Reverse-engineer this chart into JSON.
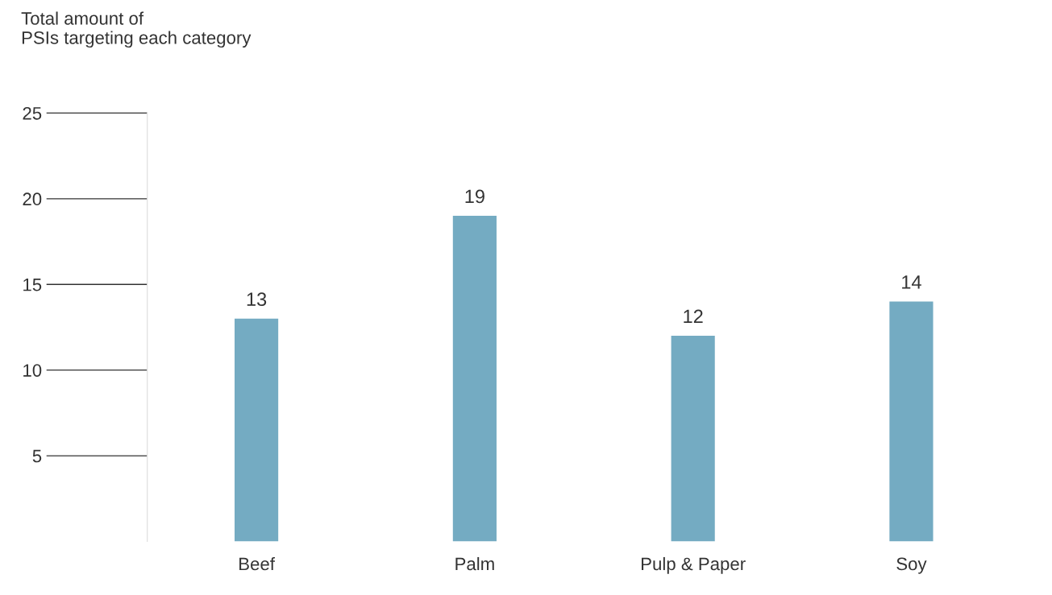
{
  "chart_data": {
    "type": "bar",
    "ylabel": "Total amount of\nPSIs targeting each category",
    "categories": [
      "Beef",
      "Palm",
      "Pulp & Paper",
      "Soy"
    ],
    "values": [
      13,
      19,
      12,
      14
    ],
    "color": "#74abc2",
    "ylim": [
      0,
      25
    ],
    "yticks": [
      5,
      10,
      15,
      20,
      25
    ],
    "data_labels": true,
    "grid": false,
    "legend": false
  }
}
